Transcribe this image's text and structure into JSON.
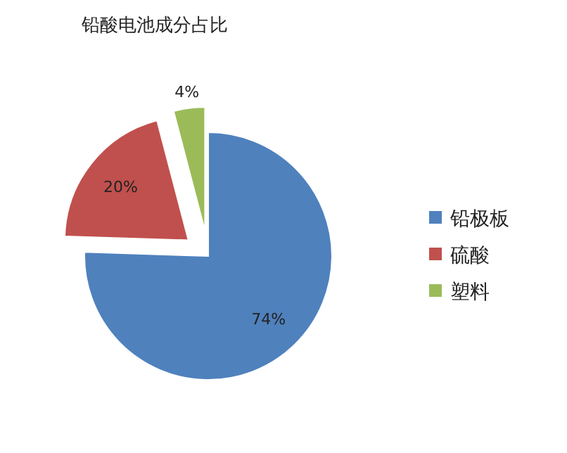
{
  "chart_data": {
    "type": "pie",
    "title": "铅酸电池成分占比",
    "categories": [
      "铅极板",
      "硫酸",
      "塑料"
    ],
    "values": [
      74,
      20,
      4
    ],
    "colors": [
      "#4f81bd",
      "#c0504d",
      "#9bbb59"
    ],
    "value_labels": [
      "74%",
      "20%",
      "4%"
    ],
    "legend": "right"
  }
}
